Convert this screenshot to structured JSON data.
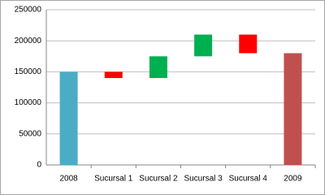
{
  "chart_data": {
    "type": "waterfall",
    "categories": [
      "2008",
      "Sucursal 1",
      "Sucursal 2",
      "Sucursal 3",
      "Sucursal 4",
      "2009"
    ],
    "values": [
      150000,
      -10000,
      35000,
      35000,
      -30000,
      180000
    ],
    "totals": [
      true,
      false,
      false,
      false,
      false,
      true
    ],
    "colors": [
      "#4bacc6",
      "#ff0000",
      "#00b050",
      "#00b050",
      "#ff0000",
      "#c0504d"
    ],
    "ylim": [
      0,
      250000
    ],
    "yticks": [
      0,
      50000,
      100000,
      150000,
      200000,
      250000
    ],
    "grid": true
  }
}
